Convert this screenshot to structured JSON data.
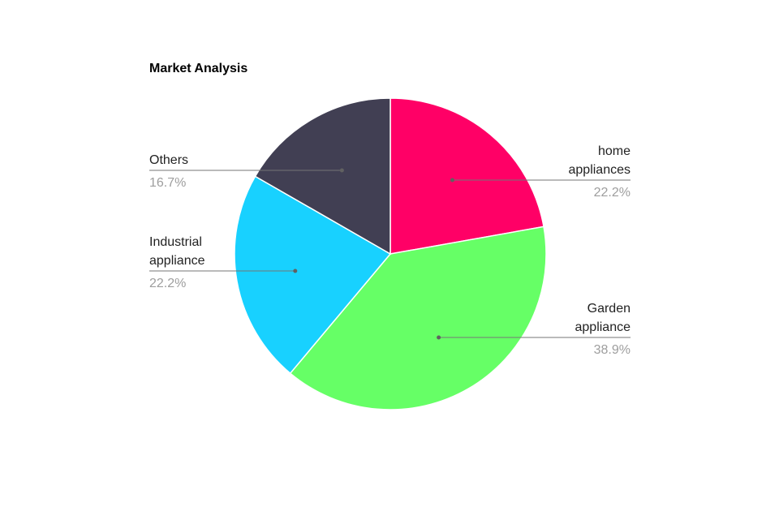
{
  "chart_data": {
    "type": "pie",
    "title": "Market Analysis",
    "start_angle_deg": 0,
    "direction": "clockwise",
    "slices": [
      {
        "label": "home appliances",
        "label_lines": [
          "home",
          "appliances"
        ],
        "value": 22.2,
        "percent_label": "22.2%",
        "color": "#ff0066",
        "label_side": "right"
      },
      {
        "label": "Garden appliance",
        "label_lines": [
          "Garden",
          "appliance"
        ],
        "value": 38.9,
        "percent_label": "38.9%",
        "color": "#66ff66",
        "label_side": "right"
      },
      {
        "label": "Industrial appliance",
        "label_lines": [
          "Industrial",
          "appliance"
        ],
        "value": 22.2,
        "percent_label": "22.2%",
        "color": "#18d1ff",
        "label_side": "left"
      },
      {
        "label": "Others",
        "label_lines": [
          "Others"
        ],
        "value": 16.7,
        "percent_label": "16.7%",
        "color": "#413f53",
        "label_side": "left"
      }
    ]
  }
}
